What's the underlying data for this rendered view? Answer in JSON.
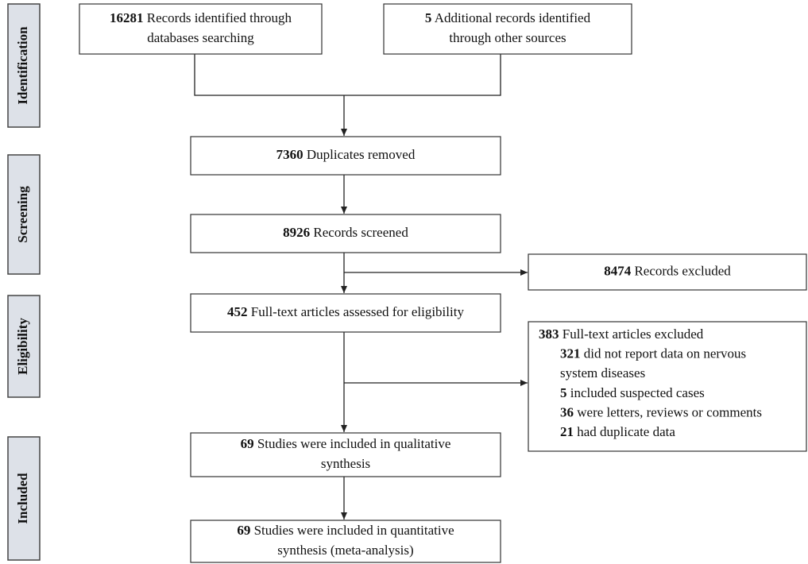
{
  "stages": [
    "Identification",
    "Screening",
    "Eligibility",
    "Included"
  ],
  "boxes": [
    {
      "count": "16281",
      "lines": [
        "Records identified through",
        "databases searching"
      ]
    },
    {
      "count": "5",
      "lines": [
        "Additional records identified",
        "through other sources"
      ]
    },
    {
      "count": "7360",
      "lines": [
        "Duplicates removed"
      ]
    },
    {
      "count": "8926",
      "lines": [
        "Records screened"
      ]
    },
    {
      "count": "8474",
      "lines": [
        "Records excluded"
      ]
    },
    {
      "count": "452",
      "lines": [
        "Full-text articles assessed for eligibility"
      ]
    },
    {
      "count": "69",
      "lines": [
        "Studies were included in qualitative",
        "synthesis"
      ]
    },
    {
      "count": "69",
      "lines": [
        "Studies were included in quantitative",
        "synthesis (meta-analysis)"
      ]
    }
  ],
  "fulltext_excluded": {
    "count": "383",
    "lines": [
      "Full-text articles excluded"
    ],
    "items": [
      {
        "count": "321",
        "lines": [
          "did not report data on nervous",
          "system diseases"
        ]
      },
      {
        "count": "5",
        "lines": [
          "included suspected cases"
        ]
      },
      {
        "count": "36",
        "lines": [
          "were letters, reviews or comments"
        ]
      },
      {
        "count": "21",
        "lines": [
          "had duplicate data"
        ]
      }
    ]
  }
}
